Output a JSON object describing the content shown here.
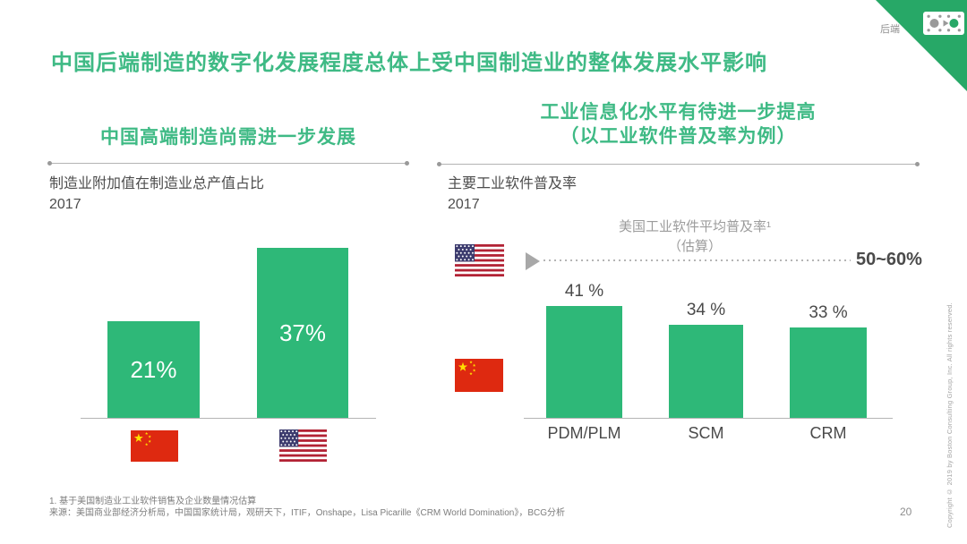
{
  "page": {
    "corner_tag": "后端",
    "title": "中国后端制造的数字化发展程度总体上受中国制造业的整体发展水平影响",
    "page_number": "20",
    "copyright_vertical": "Copyright © 2019 by Boston Consulting Group, Inc.  All  rights reserved."
  },
  "icons": {
    "corner_icon": "process-flow-icon",
    "benchmark_pointer": "triangle-right-icon",
    "flags": [
      "china-flag",
      "usa-flag"
    ]
  },
  "colors": {
    "bar_green": "#2EB878",
    "heading_green": "#3FBA85",
    "corner_green": "#27A867",
    "text_dark": "#4A4A4A",
    "text_gray": "#9C9C9C",
    "china_red": "#DE2910",
    "china_yellow": "#FFDE00",
    "usa_red": "#B22234",
    "usa_blue": "#3C3B6E"
  },
  "left_section": {
    "header": "中国高端制造尚需进一步发展",
    "chart_title": "制造业附加值在制造业总产值占比",
    "chart_year": "2017"
  },
  "right_section": {
    "header_line1": "工业信息化水平有待进一步提高",
    "header_line2": "（以工业软件普及率为例）",
    "chart_title": "主要工业软件普及率",
    "chart_year": "2017",
    "benchmark_label_line1": "美国工业软件平均普及率¹",
    "benchmark_label_line2": "（估算）",
    "benchmark_value": "50~60%"
  },
  "footnotes": {
    "note1": "1. 基于美国制造业工业软件销售及企业数量情况估算",
    "source": "来源：美国商业部经济分析局，中国国家统计局，观研天下，ITIF，Onshape，Lisa Picarille《CRM World Domination》，BCG分析"
  },
  "chart_data": [
    {
      "type": "bar",
      "title": "制造业附加值在制造业总产值占比",
      "year": "2017",
      "categories": [
        "中国",
        "美国"
      ],
      "category_flags": [
        "china",
        "usa"
      ],
      "values": [
        21,
        37
      ],
      "value_labels": [
        "21%",
        "37%"
      ],
      "unit": "%",
      "ylim": [
        0,
        40
      ],
      "grid": false,
      "value_label_position": "inside-center"
    },
    {
      "type": "bar",
      "title": "主要工业软件普及率",
      "year": "2017",
      "categories": [
        "PDM/PLM",
        "SCM",
        "CRM"
      ],
      "values": [
        41,
        34,
        33
      ],
      "value_labels": [
        "41 %",
        "34 %",
        "33 %"
      ],
      "unit": "%",
      "series_flag": "china",
      "benchmark": {
        "flag": "usa",
        "label": "美国工业软件平均普及率（估算）",
        "value_range": "50~60%",
        "value_numeric": [
          50,
          60
        ],
        "style": "dotted-line"
      },
      "ylim": [
        0,
        60
      ],
      "grid": false,
      "value_label_position": "above"
    }
  ]
}
